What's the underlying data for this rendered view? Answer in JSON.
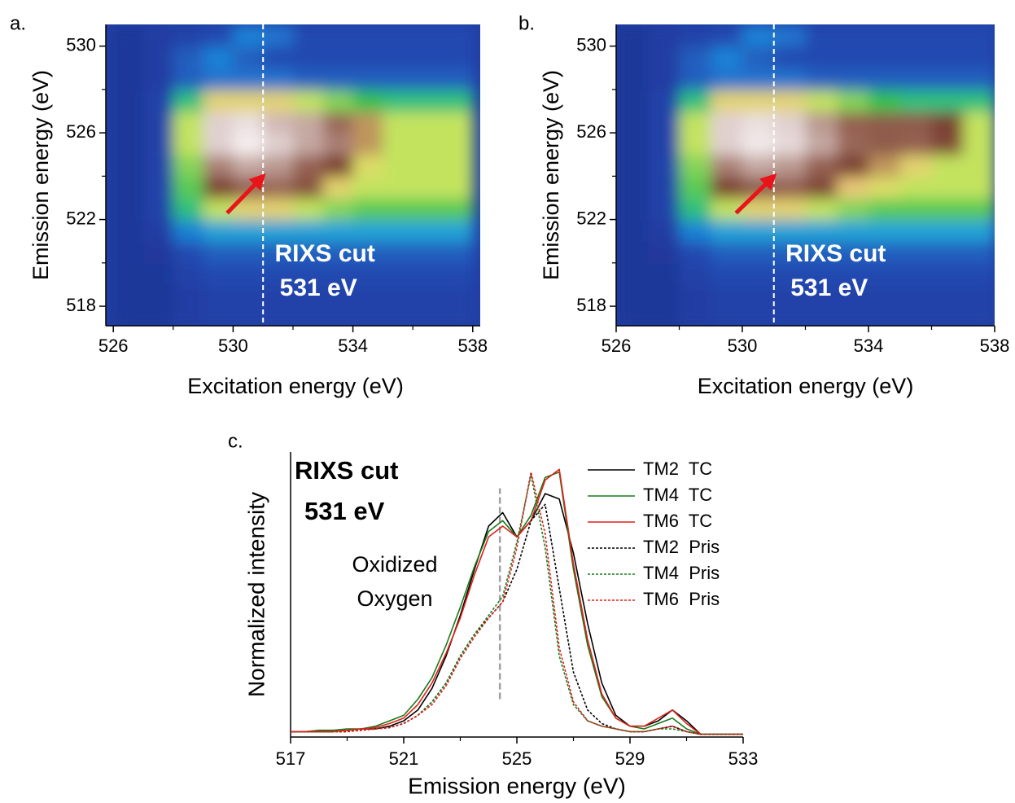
{
  "chart_data": [
    {
      "type": "heatmap",
      "panel_label": "a.",
      "xlabel": "Excitation energy (eV)",
      "ylabel": "Emission energy (eV)",
      "xlim": [
        525.75,
        538.25
      ],
      "ylim": [
        517.1,
        531
      ],
      "xticks": [
        526,
        530,
        534,
        538
      ],
      "yticks": [
        518,
        522,
        526,
        530
      ],
      "minor_xticks": [
        528,
        532,
        536
      ],
      "minor_yticks": [
        520,
        524,
        528
      ],
      "x": [
        526.5,
        527.5,
        528.5,
        529.5,
        530.5,
        531.5,
        532.5,
        533.5,
        534.5,
        535.5,
        536.5,
        537.5
      ],
      "y": [
        517.5,
        518.5,
        519.5,
        520.5,
        521.5,
        522.5,
        523.5,
        524.5,
        525.5,
        526.5,
        527.5,
        528.5,
        529.5,
        530.5
      ],
      "z": [
        [
          0.05,
          0.05,
          0.08,
          0.1,
          0.1,
          0.1,
          0.1,
          0.1,
          0.1,
          0.1,
          0.1,
          0.1
        ],
        [
          0.05,
          0.05,
          0.08,
          0.1,
          0.1,
          0.1,
          0.1,
          0.1,
          0.1,
          0.1,
          0.1,
          0.1
        ],
        [
          0.05,
          0.05,
          0.1,
          0.12,
          0.12,
          0.12,
          0.12,
          0.12,
          0.12,
          0.12,
          0.12,
          0.12
        ],
        [
          0.05,
          0.06,
          0.12,
          0.15,
          0.15,
          0.15,
          0.15,
          0.15,
          0.15,
          0.15,
          0.15,
          0.15
        ],
        [
          0.05,
          0.08,
          0.2,
          0.25,
          0.25,
          0.25,
          0.25,
          0.25,
          0.25,
          0.25,
          0.25,
          0.25
        ],
        [
          0.05,
          0.1,
          0.35,
          0.45,
          0.5,
          0.5,
          0.45,
          0.42,
          0.4,
          0.4,
          0.4,
          0.4
        ],
        [
          0.05,
          0.1,
          0.4,
          0.6,
          0.7,
          0.72,
          0.65,
          0.5,
          0.45,
          0.45,
          0.45,
          0.45
        ],
        [
          0.05,
          0.1,
          0.42,
          0.75,
          0.8,
          0.78,
          0.7,
          0.6,
          0.48,
          0.45,
          0.45,
          0.45
        ],
        [
          0.05,
          0.1,
          0.45,
          0.85,
          0.95,
          0.85,
          0.8,
          0.75,
          0.55,
          0.45,
          0.45,
          0.45
        ],
        [
          0.05,
          0.1,
          0.45,
          0.85,
          0.9,
          0.82,
          0.8,
          0.72,
          0.55,
          0.45,
          0.45,
          0.45
        ],
        [
          0.05,
          0.1,
          0.35,
          0.5,
          0.5,
          0.5,
          0.45,
          0.42,
          0.38,
          0.35,
          0.35,
          0.35
        ],
        [
          0.05,
          0.08,
          0.15,
          0.18,
          0.18,
          0.18,
          0.15,
          0.15,
          0.15,
          0.15,
          0.15,
          0.15
        ],
        [
          0.05,
          0.08,
          0.15,
          0.2,
          0.15,
          0.12,
          0.12,
          0.12,
          0.12,
          0.12,
          0.12,
          0.12
        ],
        [
          0.05,
          0.08,
          0.1,
          0.12,
          0.2,
          0.18,
          0.12,
          0.12,
          0.12,
          0.12,
          0.12,
          0.12
        ]
      ],
      "colorscale": [
        [
          0,
          "#1c2a88"
        ],
        [
          0.12,
          "#2448b0"
        ],
        [
          0.22,
          "#1e90e0"
        ],
        [
          0.3,
          "#28c0c8"
        ],
        [
          0.38,
          "#30c050"
        ],
        [
          0.46,
          "#d8e860"
        ],
        [
          0.52,
          "#e8c878"
        ],
        [
          0.6,
          "#7a4030"
        ],
        [
          0.72,
          "#9a6858"
        ],
        [
          0.85,
          "#e0d0d0"
        ],
        [
          1,
          "#ffffff"
        ]
      ],
      "cut_x": 531,
      "annotation": [
        "RIXS cut",
        "531 eV"
      ],
      "arrow_x": [
        529.8,
        531
      ],
      "arrow_y": [
        522.3,
        524
      ],
      "arrow_color": "#e8141a"
    },
    {
      "type": "heatmap",
      "panel_label": "b.",
      "xlabel": "Excitation energy (eV)",
      "ylabel": "Emission energy (eV)",
      "xlim": [
        526,
        538
      ],
      "ylim": [
        517.1,
        531
      ],
      "xticks": [
        526,
        530,
        534,
        538
      ],
      "yticks": [
        518,
        522,
        526,
        530
      ],
      "minor_xticks": [
        528,
        532,
        536
      ],
      "minor_yticks": [
        520,
        524,
        528
      ],
      "x": [
        526.5,
        527.5,
        528.5,
        529.5,
        530.5,
        531.5,
        532.5,
        533.5,
        534.5,
        535.5,
        536.5,
        537.5
      ],
      "y": [
        517.5,
        518.5,
        519.5,
        520.5,
        521.5,
        522.5,
        523.5,
        524.5,
        525.5,
        526.5,
        527.5,
        528.5,
        529.5,
        530.5
      ],
      "z": [
        [
          0.05,
          0.05,
          0.08,
          0.1,
          0.1,
          0.1,
          0.1,
          0.1,
          0.1,
          0.1,
          0.1,
          0.1
        ],
        [
          0.05,
          0.05,
          0.08,
          0.1,
          0.1,
          0.1,
          0.1,
          0.1,
          0.1,
          0.1,
          0.1,
          0.1
        ],
        [
          0.05,
          0.05,
          0.1,
          0.12,
          0.12,
          0.12,
          0.12,
          0.12,
          0.12,
          0.12,
          0.12,
          0.12
        ],
        [
          0.05,
          0.06,
          0.12,
          0.15,
          0.15,
          0.15,
          0.15,
          0.15,
          0.15,
          0.15,
          0.15,
          0.15
        ],
        [
          0.05,
          0.08,
          0.2,
          0.25,
          0.25,
          0.25,
          0.25,
          0.25,
          0.25,
          0.25,
          0.25,
          0.25
        ],
        [
          0.05,
          0.1,
          0.35,
          0.45,
          0.5,
          0.5,
          0.45,
          0.42,
          0.4,
          0.4,
          0.4,
          0.4
        ],
        [
          0.05,
          0.1,
          0.4,
          0.6,
          0.68,
          0.7,
          0.62,
          0.52,
          0.48,
          0.45,
          0.45,
          0.45
        ],
        [
          0.05,
          0.1,
          0.42,
          0.75,
          0.8,
          0.78,
          0.7,
          0.6,
          0.55,
          0.5,
          0.45,
          0.45
        ],
        [
          0.05,
          0.1,
          0.45,
          0.85,
          0.93,
          0.88,
          0.8,
          0.72,
          0.68,
          0.7,
          0.62,
          0.45
        ],
        [
          0.05,
          0.1,
          0.45,
          0.85,
          0.9,
          0.85,
          0.78,
          0.7,
          0.68,
          0.68,
          0.6,
          0.45
        ],
        [
          0.05,
          0.1,
          0.35,
          0.5,
          0.5,
          0.5,
          0.45,
          0.42,
          0.38,
          0.35,
          0.35,
          0.35
        ],
        [
          0.05,
          0.08,
          0.15,
          0.18,
          0.18,
          0.18,
          0.15,
          0.15,
          0.15,
          0.15,
          0.15,
          0.15
        ],
        [
          0.05,
          0.08,
          0.15,
          0.2,
          0.15,
          0.12,
          0.12,
          0.12,
          0.12,
          0.12,
          0.12,
          0.12
        ],
        [
          0.05,
          0.08,
          0.1,
          0.12,
          0.2,
          0.18,
          0.12,
          0.12,
          0.12,
          0.12,
          0.12,
          0.12
        ]
      ],
      "colorscale": [
        [
          0,
          "#1c2a88"
        ],
        [
          0.12,
          "#2448b0"
        ],
        [
          0.22,
          "#1e90e0"
        ],
        [
          0.3,
          "#28c0c8"
        ],
        [
          0.38,
          "#30c050"
        ],
        [
          0.46,
          "#d8e860"
        ],
        [
          0.52,
          "#e8c878"
        ],
        [
          0.6,
          "#7a4030"
        ],
        [
          0.72,
          "#9a6858"
        ],
        [
          0.85,
          "#e0d0d0"
        ],
        [
          1,
          "#ffffff"
        ]
      ],
      "cut_x": 531,
      "annotation": [
        "RIXS cut",
        "531 eV"
      ],
      "arrow_x": [
        529.8,
        531
      ],
      "arrow_y": [
        522.3,
        524
      ],
      "arrow_color": "#e8141a"
    },
    {
      "type": "line",
      "panel_label": "c.",
      "xlabel": "Emission energy (eV)",
      "ylabel": "Normalized intensity",
      "title": [
        "RIXS cut",
        "531 eV"
      ],
      "annotation": [
        "Oxidized",
        "Oxygen"
      ],
      "marker_x": 524.4,
      "marker_y": [
        0.14,
        0.92
      ],
      "marker_color": "#a0a0a0",
      "xlim": [
        517,
        533
      ],
      "ylim": [
        0,
        1.054
      ],
      "xticks": [
        517,
        521,
        525,
        529,
        533
      ],
      "minor_xticks": [
        519,
        523,
        527,
        531
      ],
      "x": [
        517,
        517.5,
        518,
        518.5,
        519,
        519.5,
        520,
        520.5,
        521,
        521.5,
        522,
        522.5,
        523,
        523.5,
        524,
        524.5,
        525,
        525.5,
        526,
        526.5,
        527,
        527.5,
        528,
        528.5,
        529,
        529.5,
        530,
        530.5,
        531,
        531.5,
        532,
        532.5,
        533
      ],
      "series": [
        {
          "name": "TM2  TC",
          "color": "#000000",
          "dash": "solid",
          "values": [
            0.02,
            0.02,
            0.02,
            0.02,
            0.025,
            0.03,
            0.03,
            0.04,
            0.06,
            0.1,
            0.18,
            0.3,
            0.45,
            0.62,
            0.78,
            0.83,
            0.74,
            0.8,
            0.9,
            0.88,
            0.68,
            0.42,
            0.2,
            0.08,
            0.04,
            0.04,
            0.06,
            0.1,
            0.06,
            0.01,
            0.01,
            0.01,
            0.01
          ]
        },
        {
          "name": "TM4  TC",
          "color": "#1a7a1a",
          "dash": "solid",
          "values": [
            0.02,
            0.02,
            0.025,
            0.025,
            0.03,
            0.03,
            0.04,
            0.06,
            0.08,
            0.14,
            0.22,
            0.34,
            0.48,
            0.63,
            0.76,
            0.8,
            0.74,
            0.82,
            0.96,
            0.98,
            0.62,
            0.34,
            0.15,
            0.07,
            0.04,
            0.03,
            0.05,
            0.07,
            0.03,
            0.01,
            0.01,
            0.01,
            0.01
          ]
        },
        {
          "name": "TM6  TC",
          "color": "#e0201a",
          "dash": "solid",
          "values": [
            0.02,
            0.02,
            0.02,
            0.02,
            0.025,
            0.03,
            0.035,
            0.05,
            0.07,
            0.12,
            0.2,
            0.31,
            0.44,
            0.6,
            0.74,
            0.78,
            0.74,
            0.8,
            0.95,
            0.99,
            0.64,
            0.36,
            0.16,
            0.07,
            0.04,
            0.04,
            0.07,
            0.1,
            0.05,
            0.01,
            0.01,
            0.01,
            0.01
          ]
        },
        {
          "name": "TM2  Pris",
          "color": "#000000",
          "dash": "dotted",
          "values": [
            0.02,
            0.02,
            0.02,
            0.02,
            0.02,
            0.025,
            0.03,
            0.035,
            0.05,
            0.08,
            0.13,
            0.2,
            0.3,
            0.38,
            0.44,
            0.5,
            0.62,
            0.8,
            0.86,
            0.55,
            0.24,
            0.1,
            0.05,
            0.03,
            0.02,
            0.02,
            0.03,
            0.04,
            0.02,
            0.01,
            0.01,
            0.01,
            0.01
          ]
        },
        {
          "name": "TM4  Pris",
          "color": "#1a7a1a",
          "dash": "dotted",
          "values": [
            0.02,
            0.02,
            0.02,
            0.02,
            0.02,
            0.025,
            0.03,
            0.035,
            0.05,
            0.08,
            0.13,
            0.2,
            0.3,
            0.38,
            0.45,
            0.52,
            0.72,
            0.97,
            0.7,
            0.3,
            0.12,
            0.06,
            0.04,
            0.03,
            0.02,
            0.02,
            0.03,
            0.03,
            0.02,
            0.01,
            0.01,
            0.01,
            0.01
          ]
        },
        {
          "name": "TM6  Pris",
          "color": "#e0201a",
          "dash": "dotted",
          "values": [
            0.02,
            0.02,
            0.02,
            0.02,
            0.02,
            0.025,
            0.03,
            0.035,
            0.05,
            0.08,
            0.12,
            0.19,
            0.29,
            0.37,
            0.44,
            0.5,
            0.7,
            0.98,
            0.75,
            0.33,
            0.13,
            0.06,
            0.04,
            0.03,
            0.02,
            0.02,
            0.03,
            0.04,
            0.02,
            0.01,
            0.01,
            0.01,
            0.01
          ]
        }
      ]
    }
  ]
}
